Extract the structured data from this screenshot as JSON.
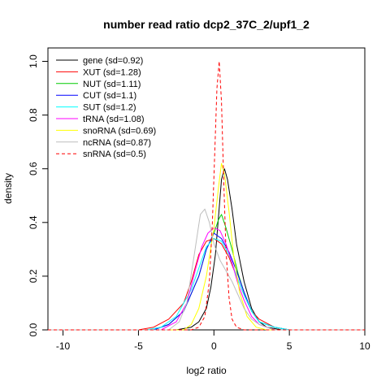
{
  "chart_data": {
    "type": "line",
    "title": "number read ratio dcp2_37C_2/upf1_2",
    "xlabel": "log2 ratio",
    "ylabel": "density",
    "xlim": [
      -11,
      10
    ],
    "ylim": [
      0,
      1.05
    ],
    "xticks": [
      -10,
      -5,
      0,
      5,
      10
    ],
    "yticks": [
      0.0,
      0.2,
      0.4,
      0.6,
      0.8,
      1.0
    ],
    "xtick_labels": [
      "-10",
      "-5",
      "0",
      "5",
      "10"
    ],
    "ytick_labels": [
      "0.0",
      "0.2",
      "0.4",
      "0.6",
      "0.8",
      "1.0"
    ],
    "grid": false,
    "legend_position": "top-left",
    "series": [
      {
        "name": "gene (sd=0.92)",
        "color": "#000000",
        "dashed": false,
        "points": [
          [
            -11,
            0
          ],
          [
            -2.5,
            0
          ],
          [
            -1.5,
            0.01
          ],
          [
            -1,
            0.03
          ],
          [
            -0.5,
            0.08
          ],
          [
            -0.2,
            0.16
          ],
          [
            0.1,
            0.28
          ],
          [
            0.3,
            0.42
          ],
          [
            0.5,
            0.56
          ],
          [
            0.7,
            0.6
          ],
          [
            0.9,
            0.56
          ],
          [
            1.2,
            0.45
          ],
          [
            1.5,
            0.32
          ],
          [
            2,
            0.18
          ],
          [
            2.5,
            0.08
          ],
          [
            3,
            0.03
          ],
          [
            3.5,
            0.01
          ],
          [
            4.5,
            0
          ],
          [
            10,
            0
          ]
        ]
      },
      {
        "name": "XUT (sd=1.28)",
        "color": "#ff0000",
        "dashed": false,
        "points": [
          [
            -11,
            0
          ],
          [
            -5,
            0
          ],
          [
            -4,
            0.01
          ],
          [
            -3,
            0.04
          ],
          [
            -2,
            0.1
          ],
          [
            -1.5,
            0.18
          ],
          [
            -1,
            0.28
          ],
          [
            -0.5,
            0.33
          ],
          [
            0,
            0.34
          ],
          [
            0.5,
            0.32
          ],
          [
            1,
            0.27
          ],
          [
            1.5,
            0.2
          ],
          [
            2,
            0.13
          ],
          [
            2.5,
            0.07
          ],
          [
            3,
            0.04
          ],
          [
            4,
            0.01
          ],
          [
            5,
            0
          ],
          [
            10,
            0
          ]
        ]
      },
      {
        "name": "NUT (sd=1.11)",
        "color": "#00cc00",
        "dashed": false,
        "points": [
          [
            -11,
            0
          ],
          [
            -4,
            0
          ],
          [
            -3,
            0.02
          ],
          [
            -2,
            0.07
          ],
          [
            -1,
            0.2
          ],
          [
            -0.5,
            0.3
          ],
          [
            0,
            0.36
          ],
          [
            0.3,
            0.41
          ],
          [
            0.5,
            0.43
          ],
          [
            0.8,
            0.38
          ],
          [
            1.2,
            0.3
          ],
          [
            1.6,
            0.21
          ],
          [
            2,
            0.14
          ],
          [
            2.5,
            0.07
          ],
          [
            3,
            0.03
          ],
          [
            4,
            0.01
          ],
          [
            5,
            0
          ],
          [
            10,
            0
          ]
        ]
      },
      {
        "name": "CUT (sd=1.1)",
        "color": "#0000ff",
        "dashed": false,
        "points": [
          [
            -11,
            0
          ],
          [
            -4,
            0
          ],
          [
            -3,
            0.02
          ],
          [
            -2,
            0.07
          ],
          [
            -1,
            0.2
          ],
          [
            -0.5,
            0.3
          ],
          [
            0,
            0.36
          ],
          [
            0.5,
            0.34
          ],
          [
            1,
            0.29
          ],
          [
            1.5,
            0.22
          ],
          [
            2,
            0.14
          ],
          [
            2.5,
            0.07
          ],
          [
            3,
            0.03
          ],
          [
            4,
            0.01
          ],
          [
            5,
            0
          ],
          [
            10,
            0
          ]
        ]
      },
      {
        "name": "SUT (sd=1.2)",
        "color": "#00ffff",
        "dashed": false,
        "points": [
          [
            -11,
            0
          ],
          [
            -4.5,
            0
          ],
          [
            -3.5,
            0.01
          ],
          [
            -2.5,
            0.05
          ],
          [
            -1.5,
            0.15
          ],
          [
            -1,
            0.23
          ],
          [
            -0.5,
            0.31
          ],
          [
            0,
            0.34
          ],
          [
            0.5,
            0.33
          ],
          [
            1,
            0.28
          ],
          [
            1.5,
            0.2
          ],
          [
            2,
            0.13
          ],
          [
            2.5,
            0.07
          ],
          [
            3,
            0.03
          ],
          [
            4,
            0.01
          ],
          [
            5,
            0
          ],
          [
            10,
            0
          ]
        ]
      },
      {
        "name": "tRNA (sd=1.08)",
        "color": "#ff00ff",
        "dashed": false,
        "points": [
          [
            -11,
            0
          ],
          [
            -3.5,
            0
          ],
          [
            -2.5,
            0.03
          ],
          [
            -1.8,
            0.1
          ],
          [
            -1.2,
            0.23
          ],
          [
            -0.8,
            0.31
          ],
          [
            -0.4,
            0.36
          ],
          [
            0,
            0.38
          ],
          [
            0.4,
            0.37
          ],
          [
            0.8,
            0.32
          ],
          [
            1.2,
            0.25
          ],
          [
            1.6,
            0.17
          ],
          [
            2,
            0.11
          ],
          [
            2.5,
            0.05
          ],
          [
            3,
            0.02
          ],
          [
            4,
            0
          ],
          [
            10,
            0
          ]
        ]
      },
      {
        "name": "snoRNA (sd=0.69)",
        "color": "#ffff00",
        "dashed": false,
        "points": [
          [
            -11,
            0
          ],
          [
            -2,
            0
          ],
          [
            -1.5,
            0.02
          ],
          [
            -1,
            0.08
          ],
          [
            -0.5,
            0.2
          ],
          [
            0,
            0.38
          ],
          [
            0.3,
            0.53
          ],
          [
            0.5,
            0.62
          ],
          [
            0.7,
            0.58
          ],
          [
            1,
            0.44
          ],
          [
            1.3,
            0.28
          ],
          [
            1.7,
            0.14
          ],
          [
            2.2,
            0.05
          ],
          [
            2.8,
            0.01
          ],
          [
            3.5,
            0
          ],
          [
            10,
            0
          ]
        ]
      },
      {
        "name": "ncRNA (sd=0.87)",
        "color": "#bebebe",
        "dashed": false,
        "points": [
          [
            -11,
            0
          ],
          [
            -3,
            0
          ],
          [
            -2.3,
            0.03
          ],
          [
            -1.8,
            0.1
          ],
          [
            -1.3,
            0.28
          ],
          [
            -0.9,
            0.43
          ],
          [
            -0.6,
            0.45
          ],
          [
            -0.3,
            0.4
          ],
          [
            0,
            0.32
          ],
          [
            0.4,
            0.26
          ],
          [
            0.8,
            0.22
          ],
          [
            1.2,
            0.18
          ],
          [
            1.6,
            0.13
          ],
          [
            2,
            0.08
          ],
          [
            2.5,
            0.04
          ],
          [
            3,
            0.02
          ],
          [
            4,
            0
          ],
          [
            10,
            0
          ]
        ]
      },
      {
        "name": "snRNA (sd=0.5)",
        "color": "#ff0000",
        "dashed": true,
        "points": [
          [
            -11,
            0
          ],
          [
            -1.5,
            0
          ],
          [
            -1,
            0.01
          ],
          [
            -0.6,
            0.05
          ],
          [
            -0.3,
            0.18
          ],
          [
            -0.1,
            0.4
          ],
          [
            0.05,
            0.65
          ],
          [
            0.2,
            0.9
          ],
          [
            0.35,
            1.0
          ],
          [
            0.5,
            0.85
          ],
          [
            0.65,
            0.55
          ],
          [
            0.8,
            0.3
          ],
          [
            1,
            0.12
          ],
          [
            1.2,
            0.04
          ],
          [
            1.5,
            0.01
          ],
          [
            2,
            0
          ],
          [
            10,
            0
          ]
        ]
      }
    ]
  }
}
